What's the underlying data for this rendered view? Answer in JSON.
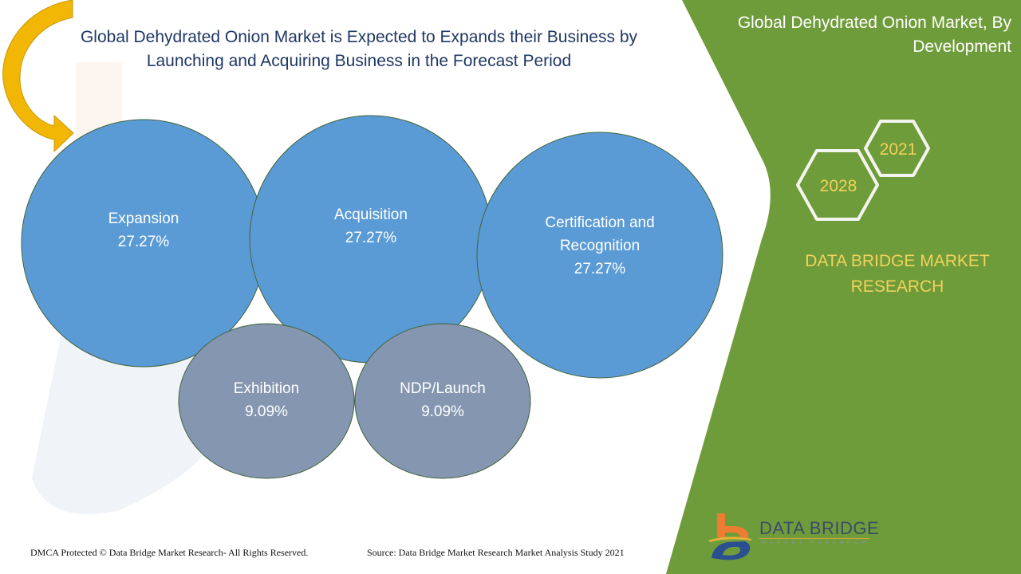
{
  "header": {
    "title_line1": "Global Dehydrated Onion Market is Expected to Expands their Business by",
    "title_line2": "Launching and Acquiring Business in the Forecast Period"
  },
  "side_panel": {
    "title_line1": "Global Dehydrated Onion Market, By",
    "title_line2": "Development",
    "years": {
      "base": "2021",
      "forecast": "2028"
    },
    "brand_line1": "DATA BRIDGE MARKET",
    "brand_line2": "RESEARCH",
    "panel_color": "#6f9c3a",
    "accent_text_color": "#f2d25c"
  },
  "logo": {
    "name": "DATA BRIDGE",
    "subtitle": "MARKET RESEARCH"
  },
  "footer": {
    "copyright": "DMCA Protected © Data Bridge Market Research- All Rights Reserved.",
    "source": "Source: Data Bridge Market Research Market Analysis Study 2021"
  },
  "chart_data": {
    "type": "bubble",
    "title": "Global Dehydrated Onion Market, By Development",
    "unit": "%",
    "categories": [
      "Expansion",
      "Acquisition",
      "Certification and Recognition",
      "Exhibition",
      "NDP/Launch"
    ],
    "values": [
      27.27,
      27.27,
      27.27,
      9.09,
      9.09
    ],
    "value_labels": [
      "27.27%",
      "27.27%",
      "27.27%",
      "9.09%",
      "9.09%"
    ],
    "label_lines": [
      [
        "Expansion"
      ],
      [
        "Acquisition"
      ],
      [
        "Certification and",
        "Recognition"
      ],
      [
        "Exhibition"
      ],
      [
        "NDP/Launch"
      ]
    ],
    "colors": [
      "#5b9bd5",
      "#5b9bd5",
      "#5b9bd5",
      "#8496b0",
      "#8496b0"
    ],
    "outline_color": "#41633b"
  }
}
